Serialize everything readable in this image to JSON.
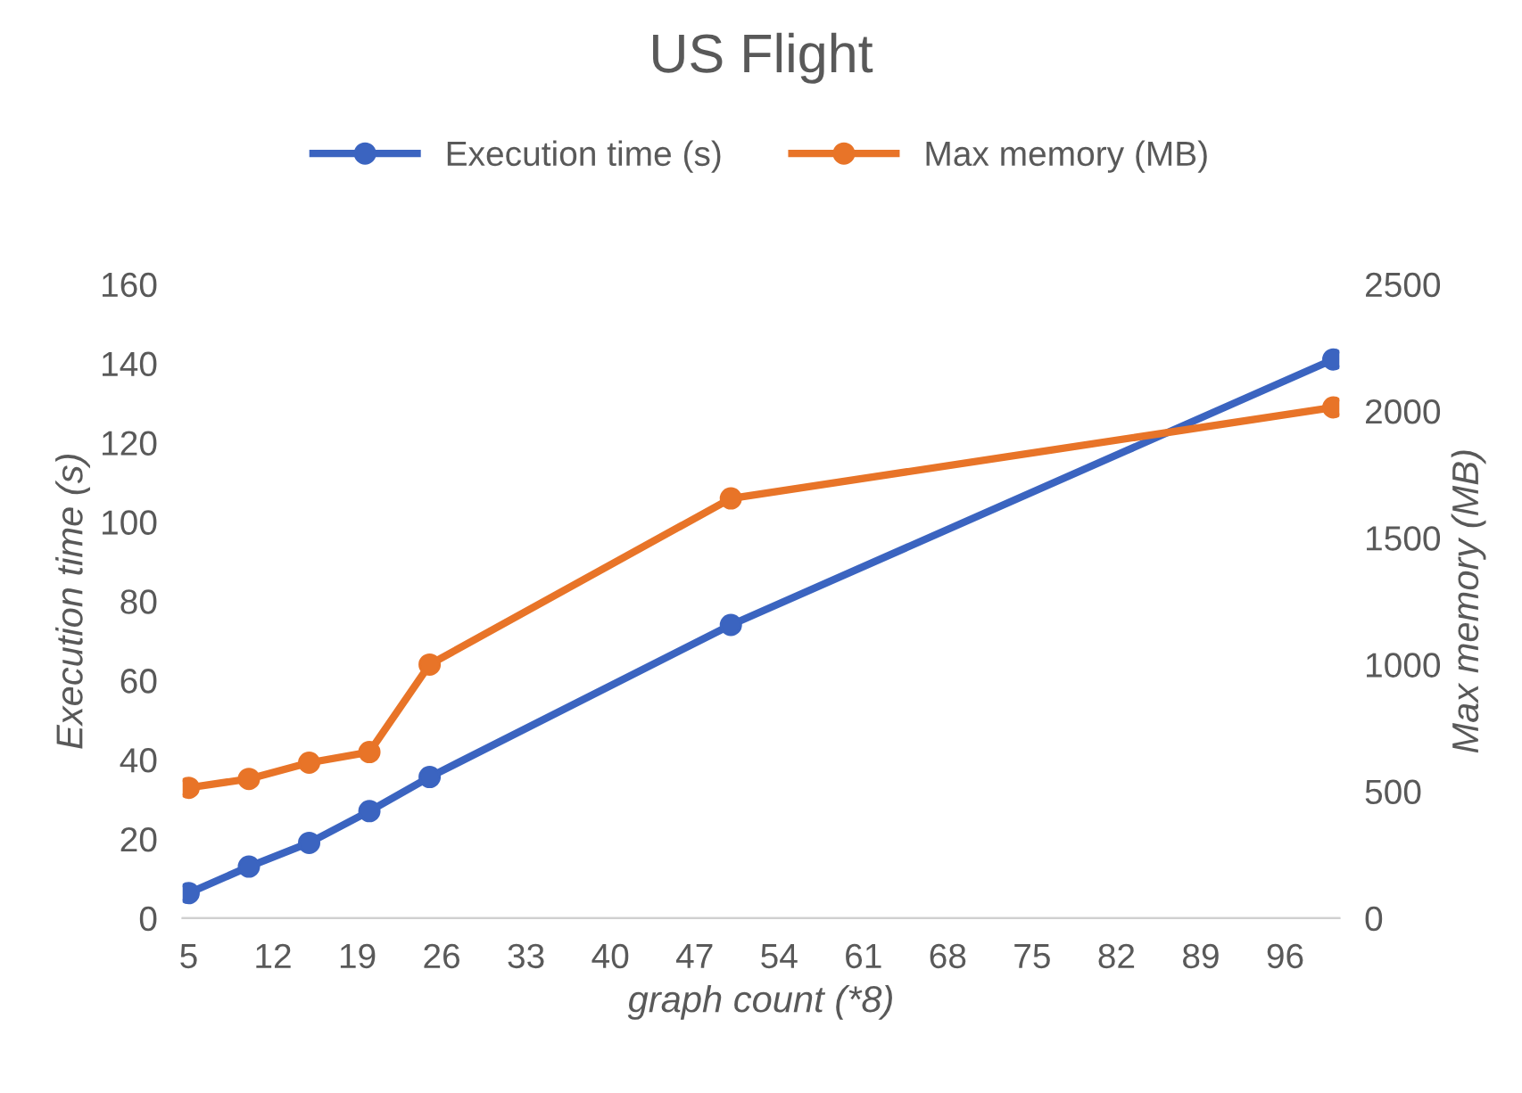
{
  "chart_data": {
    "type": "line",
    "title": "US Flight",
    "xlabel": "graph count (*8)",
    "ylabel": "Execution time (s)",
    "y2label": "Max memory (MB)",
    "x": [
      5,
      10,
      15,
      20,
      25,
      50,
      100
    ],
    "xlim": [
      4.5,
      100.5
    ],
    "xticks": [
      5,
      12,
      19,
      26,
      33,
      40,
      47,
      54,
      61,
      68,
      75,
      82,
      89,
      96
    ],
    "ylim": [
      0,
      160
    ],
    "yticks": [
      0,
      20,
      40,
      60,
      80,
      100,
      120,
      140,
      160
    ],
    "y2lim": [
      0,
      2500
    ],
    "y2ticks": [
      0,
      500,
      1000,
      1500,
      2000,
      2500
    ],
    "series": [
      {
        "name": "Execution time (s)",
        "color": "#3b64c0",
        "values": [
          6.3,
          13,
          19,
          27,
          35.6,
          74,
          141
        ]
      },
      {
        "name": "Max memory (MB)",
        "color": "#e87428",
        "axis": "y2",
        "values": [
          514,
          549,
          613,
          655,
          1000,
          1655,
          2014
        ]
      }
    ],
    "marker": "circle",
    "line_style": "solid",
    "legend": "top",
    "grid": false
  }
}
